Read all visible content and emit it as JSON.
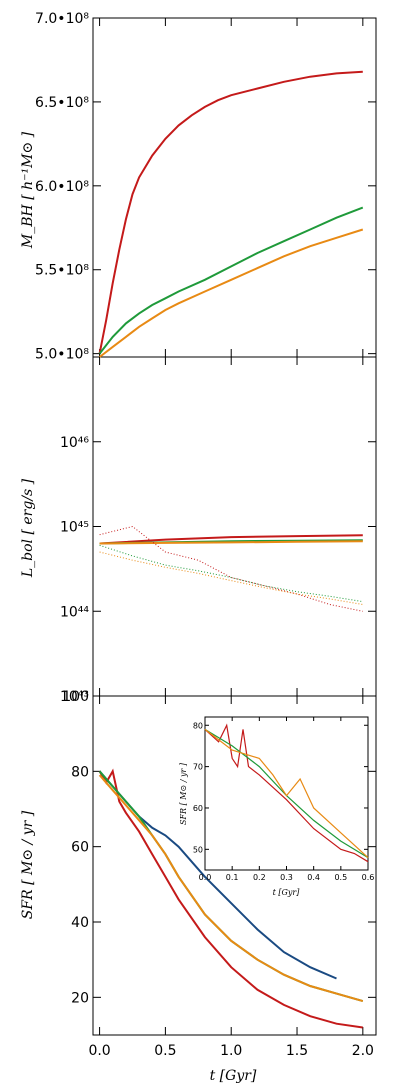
{
  "chart_data": [
    {
      "type": "line",
      "ylabel": "M_BH [ h⁻¹M⊙ ]",
      "xlim": [
        -0.05,
        2.1
      ],
      "ylim": [
        498000000.0,
        700000000.0
      ],
      "yticks": [
        "5.0•10⁸",
        "5.5•10⁸",
        "6.0•10⁸",
        "6.5•10⁸",
        "7.0•10⁸"
      ],
      "ytick_values": [
        500000000.0,
        550000000.0,
        600000000.0,
        650000000.0,
        700000000.0
      ],
      "series": [
        {
          "color": "#c41a1a",
          "x": [
            0,
            0.05,
            0.1,
            0.15,
            0.2,
            0.25,
            0.3,
            0.4,
            0.5,
            0.6,
            0.7,
            0.8,
            0.9,
            1.0,
            1.2,
            1.4,
            1.6,
            1.8,
            2.0
          ],
          "y": [
            500000000.0,
            520000000.0,
            542000000.0,
            562000000.0,
            580000000.0,
            595000000.0,
            605000000.0,
            618000000.0,
            628000000.0,
            636000000.0,
            642000000.0,
            647000000.0,
            651000000.0,
            654000000.0,
            658000000.0,
            662000000.0,
            665000000.0,
            667000000.0,
            668000000.0
          ]
        },
        {
          "color": "#1f9a3a",
          "x": [
            0,
            0.1,
            0.2,
            0.3,
            0.4,
            0.5,
            0.6,
            0.8,
            1.0,
            1.2,
            1.4,
            1.6,
            1.8,
            2.0
          ],
          "y": [
            500000000.0,
            510000000.0,
            518000000.0,
            524000000.0,
            529000000.0,
            533000000.0,
            537000000.0,
            544000000.0,
            552000000.0,
            560000000.0,
            567000000.0,
            574000000.0,
            581000000.0,
            587000000.0
          ]
        },
        {
          "color": "#e88a14",
          "x": [
            0,
            0.1,
            0.2,
            0.3,
            0.4,
            0.5,
            0.6,
            0.8,
            1.0,
            1.2,
            1.4,
            1.6,
            1.8,
            2.0
          ],
          "y": [
            498000000.0,
            504000000.0,
            510000000.0,
            516000000.0,
            521000000.0,
            526000000.0,
            530000000.0,
            537000000.0,
            544000000.0,
            551000000.0,
            558000000.0,
            564000000.0,
            569000000.0,
            574000000.0
          ]
        }
      ]
    },
    {
      "type": "line",
      "ylabel": "L_bol [ erg/s ]",
      "yscale": "log",
      "xlim": [
        -0.05,
        2.1
      ],
      "ylim": [
        1e+43,
        1e+47
      ],
      "yticks": [
        "10⁴³",
        "10⁴⁴",
        "10⁴⁵",
        "10⁴⁶"
      ],
      "ytick_values": [
        1e+43,
        1e+44,
        1e+45,
        1e+46
      ],
      "series": [
        {
          "color": "#c41a1a",
          "x": [
            0,
            0.5,
            1.0,
            1.5,
            2.0
          ],
          "y": [
            6.3e+44,
            7e+44,
            7.5e+44,
            7.7e+44,
            7.9e+44
          ]
        },
        {
          "color": "#1f9a3a",
          "x": [
            0,
            0.5,
            1.0,
            1.5,
            2.0
          ],
          "y": [
            6.3e+44,
            6.5e+44,
            6.7e+44,
            6.8e+44,
            6.9e+44
          ]
        },
        {
          "color": "#e88a14",
          "x": [
            0,
            0.5,
            1.0,
            1.5,
            2.0
          ],
          "y": [
            6.3e+44,
            6.4e+44,
            6.5e+44,
            6.6e+44,
            6.7e+44
          ]
        },
        {
          "color": "#c41a1a",
          "style": "dotted",
          "x": [
            0,
            0.25,
            0.5,
            0.75,
            1.0,
            1.25,
            1.5,
            1.75,
            2.0
          ],
          "y": [
            8e+44,
            1e+45,
            5e+44,
            4e+44,
            2.5e+44,
            2e+44,
            1.6e+44,
            1.2e+44,
            1e+44
          ]
        },
        {
          "color": "#1f9a3a",
          "style": "dotted",
          "x": [
            0,
            0.25,
            0.5,
            0.75,
            1.0,
            1.25,
            1.5,
            1.75,
            2.0
          ],
          "y": [
            6e+44,
            4.5e+44,
            3.5e+44,
            3e+44,
            2.5e+44,
            2e+44,
            1.7e+44,
            1.5e+44,
            1.3e+44
          ]
        },
        {
          "color": "#e88a14",
          "style": "dotted",
          "x": [
            0,
            0.25,
            0.5,
            0.75,
            1.0,
            1.25,
            1.5,
            1.75,
            2.0
          ],
          "y": [
            5e+44,
            4e+44,
            3.3e+44,
            2.8e+44,
            2.3e+44,
            1.9e+44,
            1.6e+44,
            1.4e+44,
            1.2e+44
          ]
        }
      ]
    },
    {
      "type": "line",
      "ylabel": "SFR [ M⊙ / yr ]",
      "xlabel": "t [Gyr]",
      "xlim": [
        -0.05,
        2.1
      ],
      "ylim": [
        10,
        100
      ],
      "xticks": [
        "0.0",
        "0.5",
        "1.0",
        "1.5",
        "2.0"
      ],
      "xtick_values": [
        0.0,
        0.5,
        1.0,
        1.5,
        2.0
      ],
      "yticks": [
        "20",
        "40",
        "60",
        "80",
        "100"
      ],
      "ytick_values": [
        20,
        40,
        60,
        80,
        100
      ],
      "series": [
        {
          "color": "#1a4a82",
          "x": [
            0,
            0.1,
            0.2,
            0.3,
            0.4,
            0.5,
            0.6,
            0.8,
            1.0,
            1.2,
            1.4,
            1.6,
            1.8
          ],
          "y": [
            80,
            76,
            72,
            68,
            65,
            63,
            60,
            52,
            45,
            38,
            32,
            28,
            25
          ]
        },
        {
          "color": "#c41a1a",
          "x": [
            0,
            0.05,
            0.1,
            0.15,
            0.2,
            0.3,
            0.4,
            0.5,
            0.6,
            0.8,
            1.0,
            1.2,
            1.4,
            1.6,
            1.8,
            2.0
          ],
          "y": [
            80,
            77,
            80,
            72,
            69,
            64,
            58,
            52,
            46,
            36,
            28,
            22,
            18,
            15,
            13,
            12
          ]
        },
        {
          "color": "#1f9a3a",
          "x": [
            0,
            0.1,
            0.2,
            0.3,
            0.4,
            0.5,
            0.6,
            0.8,
            1.0,
            1.2,
            1.4,
            1.6,
            1.8,
            2.0
          ],
          "y": [
            80,
            76,
            72,
            68,
            63,
            58,
            52,
            42,
            35,
            30,
            26,
            23,
            21,
            19
          ]
        },
        {
          "color": "#e88a14",
          "x": [
            0,
            0.1,
            0.2,
            0.3,
            0.4,
            0.5,
            0.6,
            0.8,
            1.0,
            1.2,
            1.4,
            1.6,
            1.8,
            2.0
          ],
          "y": [
            79,
            75,
            71,
            67,
            63,
            58,
            52,
            42,
            35,
            30,
            26,
            23,
            21,
            19
          ]
        }
      ]
    },
    {
      "type": "line",
      "inset": true,
      "ylabel": "SFR [ M⊙ / yr ]",
      "xlabel": "t [Gyr]",
      "xlim": [
        0,
        0.6
      ],
      "ylim": [
        45,
        82
      ],
      "xticks": [
        "0.0",
        "0.1",
        "0.2",
        "0.3",
        "0.4",
        "0.5",
        "0.6"
      ],
      "xtick_values": [
        0.0,
        0.1,
        0.2,
        0.3,
        0.4,
        0.5,
        0.6
      ],
      "yticks": [
        "50",
        "60",
        "70",
        "80"
      ],
      "ytick_values": [
        50,
        60,
        70,
        80
      ],
      "series": [
        {
          "color": "#c41a1a",
          "x": [
            0,
            0.05,
            0.08,
            0.1,
            0.12,
            0.14,
            0.16,
            0.2,
            0.3,
            0.4,
            0.5,
            0.55,
            0.6
          ],
          "y": [
            79,
            76,
            80,
            72,
            70,
            79,
            70,
            68,
            62,
            55,
            50,
            49,
            47
          ]
        },
        {
          "color": "#1f9a3a",
          "x": [
            0,
            0.1,
            0.2,
            0.3,
            0.4,
            0.5,
            0.6
          ],
          "y": [
            79,
            75,
            70,
            63,
            57,
            52,
            48
          ]
        },
        {
          "color": "#e88a14",
          "x": [
            0,
            0.1,
            0.2,
            0.25,
            0.3,
            0.35,
            0.4,
            0.5,
            0.6
          ],
          "y": [
            79,
            74,
            72,
            68,
            63,
            67,
            60,
            54,
            48
          ]
        }
      ]
    }
  ]
}
